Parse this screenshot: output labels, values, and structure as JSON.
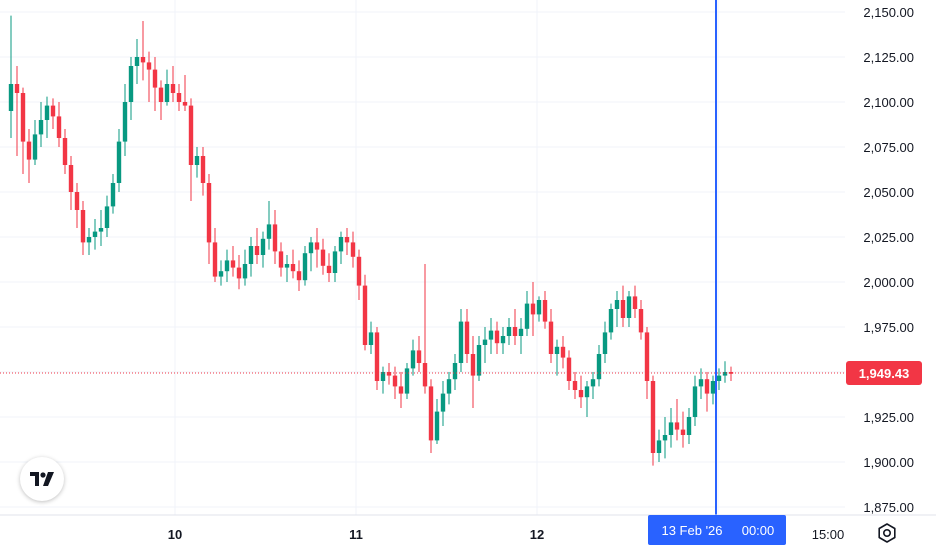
{
  "colors": {
    "up": "#089981",
    "down": "#f23645",
    "crosshair": "#2962ff",
    "grid": "#f0f3fa",
    "axis_text": "#131722",
    "price_line": "#f23645"
  },
  "price_axis": {
    "ticks": [
      "2,150.00",
      "2,125.00",
      "2,100.00",
      "2,075.00",
      "2,050.00",
      "2,025.00",
      "2,000.00",
      "1,975.00",
      "1,950.00",
      "1,925.00",
      "1,900.00",
      "1,875.00"
    ],
    "current_price_label": "1,949.43"
  },
  "time_axis": {
    "labels": [
      "10",
      "11",
      "12",
      "15:00"
    ],
    "crosshair_label": "13 Feb '26",
    "crosshair_time": "00:00"
  },
  "icons": {
    "logo": "tradingview-logo-icon",
    "settings": "gear-icon"
  },
  "chart_data": {
    "type": "candlestick",
    "instrument_interval_note": "",
    "x_unit": "bar index (~1 hour bars), day separators at 10, 11, 12 Feb",
    "day_marks": [
      {
        "label": "10",
        "bar": 27
      },
      {
        "label": "11",
        "bar": 58
      },
      {
        "label": "12",
        "bar": 89
      }
    ],
    "ylim": [
      1870,
      2155
    ],
    "last_price": 1949.43,
    "crosshair_bar": 120,
    "candles": [
      [
        2095,
        2148,
        2080,
        2110
      ],
      [
        2110,
        2120,
        2070,
        2105
      ],
      [
        2105,
        2108,
        2060,
        2078
      ],
      [
        2078,
        2085,
        2055,
        2068
      ],
      [
        2068,
        2090,
        2065,
        2082
      ],
      [
        2082,
        2100,
        2075,
        2090
      ],
      [
        2090,
        2103,
        2080,
        2098
      ],
      [
        2098,
        2102,
        2085,
        2092
      ],
      [
        2092,
        2100,
        2075,
        2080
      ],
      [
        2080,
        2085,
        2060,
        2065
      ],
      [
        2065,
        2070,
        2040,
        2050
      ],
      [
        2050,
        2055,
        2030,
        2040
      ],
      [
        2040,
        2045,
        2015,
        2022
      ],
      [
        2022,
        2030,
        2015,
        2025
      ],
      [
        2025,
        2035,
        2018,
        2028
      ],
      [
        2028,
        2040,
        2020,
        2030
      ],
      [
        2030,
        2048,
        2025,
        2042
      ],
      [
        2042,
        2060,
        2038,
        2055
      ],
      [
        2055,
        2085,
        2050,
        2078
      ],
      [
        2078,
        2110,
        2070,
        2100
      ],
      [
        2100,
        2125,
        2090,
        2120
      ],
      [
        2120,
        2135,
        2110,
        2125
      ],
      [
        2125,
        2145,
        2112,
        2122
      ],
      [
        2122,
        2128,
        2100,
        2118
      ],
      [
        2118,
        2125,
        2095,
        2108
      ],
      [
        2108,
        2112,
        2090,
        2100
      ],
      [
        2100,
        2118,
        2098,
        2110
      ],
      [
        2110,
        2120,
        2100,
        2105
      ],
      [
        2105,
        2110,
        2095,
        2100
      ],
      [
        2100,
        2115,
        2095,
        2098
      ],
      [
        2098,
        2102,
        2045,
        2065
      ],
      [
        2065,
        2075,
        2058,
        2070
      ],
      [
        2070,
        2075,
        2048,
        2055
      ],
      [
        2055,
        2060,
        2010,
        2022
      ],
      [
        2022,
        2030,
        2000,
        2003
      ],
      [
        2003,
        2012,
        1998,
        2006
      ],
      [
        2006,
        2018,
        2000,
        2012
      ],
      [
        2012,
        2020,
        2003,
        2008
      ],
      [
        2008,
        2015,
        1996,
        2002
      ],
      [
        2002,
        2018,
        1998,
        2010
      ],
      [
        2010,
        2025,
        2003,
        2020
      ],
      [
        2020,
        2030,
        2010,
        2015
      ],
      [
        2015,
        2028,
        2008,
        2024
      ],
      [
        2024,
        2045,
        2018,
        2032
      ],
      [
        2032,
        2040,
        2010,
        2017
      ],
      [
        2017,
        2022,
        2003,
        2008
      ],
      [
        2008,
        2015,
        2000,
        2010
      ],
      [
        2010,
        2018,
        2002,
        2006
      ],
      [
        2006,
        2012,
        1995,
        2001
      ],
      [
        2001,
        2020,
        1998,
        2016
      ],
      [
        2016,
        2025,
        2006,
        2022
      ],
      [
        2022,
        2030,
        2008,
        2018
      ],
      [
        2018,
        2024,
        2004,
        2009
      ],
      [
        2009,
        2016,
        2000,
        2005
      ],
      [
        2005,
        2020,
        2000,
        2017
      ],
      [
        2017,
        2028,
        2010,
        2025
      ],
      [
        2025,
        2030,
        2015,
        2022
      ],
      [
        2022,
        2028,
        2008,
        2014
      ],
      [
        2014,
        2018,
        1990,
        1998
      ],
      [
        1998,
        2004,
        1962,
        1965
      ],
      [
        1965,
        1978,
        1960,
        1972
      ],
      [
        1972,
        1975,
        1940,
        1945
      ],
      [
        1945,
        1953,
        1938,
        1950
      ],
      [
        1950,
        1955,
        1943,
        1948
      ],
      [
        1948,
        1953,
        1935,
        1942
      ],
      [
        1942,
        1950,
        1930,
        1938
      ],
      [
        1938,
        1955,
        1935,
        1952
      ],
      [
        1952,
        1968,
        1948,
        1962
      ],
      [
        1962,
        1970,
        1950,
        1955
      ],
      [
        1955,
        2010,
        1938,
        1942
      ],
      [
        1942,
        1946,
        1905,
        1912
      ],
      [
        1912,
        1935,
        1910,
        1928
      ],
      [
        1928,
        1945,
        1920,
        1938
      ],
      [
        1938,
        1950,
        1932,
        1946
      ],
      [
        1946,
        1960,
        1940,
        1955
      ],
      [
        1955,
        1985,
        1950,
        1978
      ],
      [
        1978,
        1985,
        1955,
        1960
      ],
      [
        1960,
        1970,
        1930,
        1948
      ],
      [
        1948,
        1970,
        1945,
        1965
      ],
      [
        1965,
        1975,
        1955,
        1968
      ],
      [
        1968,
        1980,
        1960,
        1973
      ],
      [
        1973,
        1978,
        1960,
        1966
      ],
      [
        1966,
        1975,
        1960,
        1970
      ],
      [
        1970,
        1980,
        1965,
        1975
      ],
      [
        1975,
        1985,
        1965,
        1970
      ],
      [
        1970,
        1980,
        1960,
        1974
      ],
      [
        1974,
        1995,
        1970,
        1988
      ],
      [
        1988,
        2000,
        1970,
        1982
      ],
      [
        1982,
        1992,
        1978,
        1990
      ],
      [
        1990,
        1995,
        1974,
        1978
      ]
    ],
    "extra_candles_note": ""
  }
}
